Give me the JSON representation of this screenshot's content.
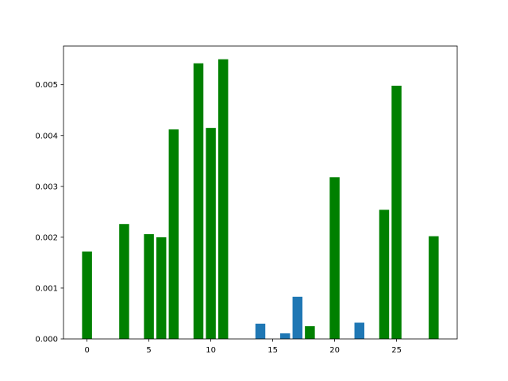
{
  "chart_data": {
    "type": "bar",
    "title": "",
    "xlabel": "",
    "ylabel": "",
    "xlim": [
      -1.9,
      29.9
    ],
    "ylim": [
      0,
      0.00576
    ],
    "grid": false,
    "legend": "none",
    "bar_width": 0.8,
    "x_ticks": [
      0,
      5,
      10,
      15,
      20,
      25
    ],
    "x_tick_labels": [
      "0",
      "5",
      "10",
      "15",
      "20",
      "25"
    ],
    "y_ticks": [
      0,
      0.001,
      0.002,
      0.003,
      0.004,
      0.005
    ],
    "y_tick_labels": [
      "0.000",
      "0.001",
      "0.002",
      "0.003",
      "0.004",
      "0.005"
    ],
    "colors": {
      "green": "#008000",
      "blue": "#1f77b4"
    },
    "bars": [
      {
        "x": 0,
        "value": 0.00172,
        "color": "green"
      },
      {
        "x": 3,
        "value": 0.00226,
        "color": "green"
      },
      {
        "x": 5,
        "value": 0.00206,
        "color": "green"
      },
      {
        "x": 6,
        "value": 0.002,
        "color": "green"
      },
      {
        "x": 7,
        "value": 0.00412,
        "color": "green"
      },
      {
        "x": 9,
        "value": 0.00542,
        "color": "green"
      },
      {
        "x": 10,
        "value": 0.00415,
        "color": "green"
      },
      {
        "x": 11,
        "value": 0.0055,
        "color": "green"
      },
      {
        "x": 14,
        "value": 0.0003,
        "color": "blue"
      },
      {
        "x": 16,
        "value": 0.00011,
        "color": "blue"
      },
      {
        "x": 17,
        "value": 0.00083,
        "color": "blue"
      },
      {
        "x": 18,
        "value": 0.00025,
        "color": "green"
      },
      {
        "x": 20,
        "value": 0.00318,
        "color": "green"
      },
      {
        "x": 22,
        "value": 0.00032,
        "color": "blue"
      },
      {
        "x": 24,
        "value": 0.00254,
        "color": "green"
      },
      {
        "x": 25,
        "value": 0.00498,
        "color": "green"
      },
      {
        "x": 28,
        "value": 0.00202,
        "color": "green"
      }
    ]
  }
}
